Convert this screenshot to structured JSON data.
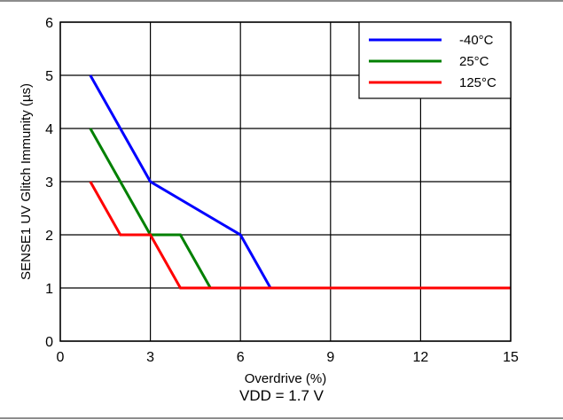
{
  "chart_data": {
    "type": "line",
    "xlabel": "Overdrive (%)",
    "ylabel": "SENSE1 UV Glitch Immunity (µs)",
    "xlim": [
      0,
      15
    ],
    "ylim": [
      0,
      6
    ],
    "xticks": [
      0,
      3,
      6,
      9,
      12,
      15
    ],
    "yticks": [
      0,
      1,
      2,
      3,
      4,
      5,
      6
    ],
    "grid": true,
    "legend_position": "top-right",
    "series": [
      {
        "name": "-40°C",
        "color": "#0000ff",
        "x": [
          1,
          3,
          6,
          7,
          15
        ],
        "y": [
          5,
          3,
          2,
          1,
          1
        ]
      },
      {
        "name": "25°C",
        "color": "#008000",
        "x": [
          1,
          2,
          3,
          4,
          5,
          15
        ],
        "y": [
          4,
          3,
          2,
          2,
          1,
          1
        ]
      },
      {
        "name": "125°C",
        "color": "#ff0000",
        "x": [
          1,
          2,
          3,
          4,
          15
        ],
        "y": [
          3,
          2,
          2,
          1,
          1
        ]
      }
    ]
  },
  "caption": "VDD = 1.7 V",
  "legend_suffix": "°C"
}
